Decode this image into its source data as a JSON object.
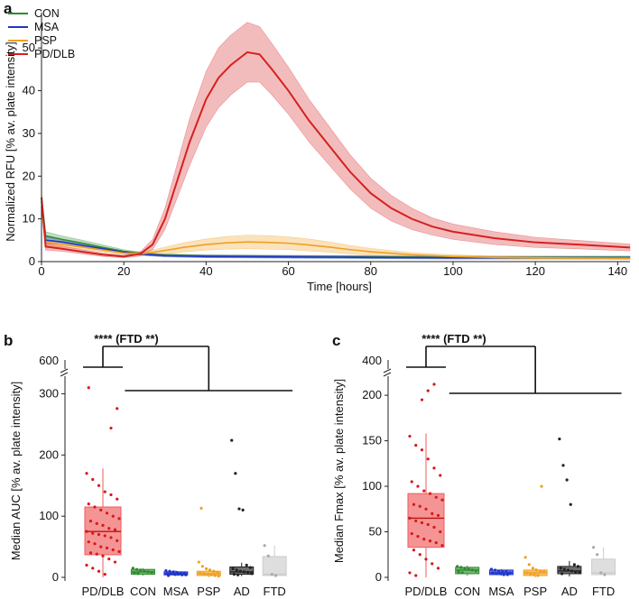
{
  "panel_a": {
    "letter": "a",
    "chart_data": {
      "type": "line",
      "title": "",
      "xlabel": "Time [hours]",
      "ylabel": "Normalized RFU [% av. plate intensity]",
      "xlim": [
        0,
        143
      ],
      "ylim": [
        0,
        57
      ],
      "xticks": [
        "0",
        "20",
        "40",
        "60",
        "80",
        "100",
        "120",
        "140"
      ],
      "yticks": [
        "0",
        "10",
        "20",
        "30",
        "40",
        "50"
      ],
      "legend": "top-left",
      "series": [
        {
          "name": "CON",
          "color": "#2e8b2e",
          "x": [
            0,
            1,
            5,
            10,
            15,
            20,
            25,
            30,
            40,
            60,
            80,
            100,
            120,
            143
          ],
          "y": [
            15,
            6,
            5.2,
            4.3,
            3.3,
            2.4,
            1.8,
            1.5,
            1.3,
            1.2,
            1.1,
            1.0,
            1.0,
            1.0
          ],
          "band": [
            1.2,
            1.0,
            0.8,
            0.7,
            0.6,
            0.4,
            0.3,
            0.3,
            0.3,
            0.3,
            0.3,
            0.3,
            0.3,
            0.3
          ]
        },
        {
          "name": "MSA",
          "color": "#1f35c8",
          "x": [
            0,
            1,
            5,
            10,
            15,
            20,
            25,
            30,
            40,
            60,
            80,
            100,
            120,
            143
          ],
          "y": [
            14,
            5,
            4.6,
            3.8,
            3.0,
            2.2,
            1.7,
            1.4,
            1.2,
            1.1,
            1.0,
            0.9,
            0.9,
            0.9
          ],
          "band": [
            1.0,
            0.8,
            0.6,
            0.5,
            0.4,
            0.3,
            0.3,
            0.3,
            0.3,
            0.3,
            0.3,
            0.3,
            0.3,
            0.3
          ]
        },
        {
          "name": "PSP",
          "color": "#f0a020",
          "x": [
            0,
            1,
            5,
            10,
            15,
            20,
            25,
            30,
            35,
            40,
            45,
            50,
            55,
            60,
            65,
            70,
            75,
            80,
            90,
            100,
            110,
            120,
            143
          ],
          "y": [
            13,
            4.5,
            4.0,
            3.4,
            2.7,
            2.0,
            1.9,
            2.6,
            3.4,
            4.0,
            4.4,
            4.6,
            4.5,
            4.3,
            3.9,
            3.4,
            2.8,
            2.3,
            1.6,
            1.2,
            1.0,
            0.9,
            0.8
          ],
          "band": [
            1.0,
            0.8,
            0.6,
            0.5,
            0.4,
            0.3,
            0.4,
            0.8,
            1.1,
            1.3,
            1.5,
            1.6,
            1.6,
            1.5,
            1.4,
            1.2,
            1.0,
            0.8,
            0.5,
            0.4,
            0.3,
            0.3,
            0.3
          ]
        },
        {
          "name": "PD/DLB",
          "color": "#d62020",
          "x": [
            0,
            1,
            5,
            10,
            15,
            20,
            24,
            27,
            30,
            33,
            36,
            40,
            43,
            46,
            50,
            53,
            56,
            60,
            65,
            70,
            75,
            80,
            85,
            90,
            95,
            100,
            110,
            120,
            130,
            143
          ],
          "y": [
            15,
            3.5,
            3.0,
            2.3,
            1.6,
            1.2,
            1.8,
            4,
            10,
            19,
            28,
            38,
            43,
            46,
            49,
            48.5,
            45,
            40,
            33,
            27,
            21,
            16,
            12.5,
            10,
            8.2,
            7,
            5.5,
            4.5,
            4,
            3.3
          ],
          "band": [
            1.2,
            0.8,
            0.6,
            0.5,
            0.4,
            0.3,
            0.5,
            1.2,
            2.5,
            4,
            5.5,
            6.5,
            7,
            7,
            7,
            6.5,
            6,
            5.5,
            5,
            4.5,
            4,
            3.5,
            3,
            2.5,
            2,
            1.8,
            1.5,
            1.2,
            1,
            0.8
          ]
        }
      ]
    }
  },
  "panel_b": {
    "letter": "b",
    "significance": "**** (FTD **)",
    "chart_data": {
      "type": "box",
      "xlabel": "",
      "ylabel": "Median AUC [% av. plate intensity]",
      "ylim": [
        0,
        320
      ],
      "broken_axis_label": "600",
      "yticks": [
        "0",
        "100",
        "200",
        "300"
      ],
      "categories": [
        "PD/DLB",
        "CON",
        "MSA",
        "PSP",
        "AD",
        "FTD"
      ],
      "colors": [
        "#f05a5a",
        "#2e8b2e",
        "#1f35c8",
        "#f0a020",
        "#222222",
        "#cccccc"
      ],
      "boxes": [
        {
          "q1": 37,
          "median": 75,
          "q3": 115,
          "whislo": 0,
          "whishi": 178
        },
        {
          "q1": 5,
          "median": 9,
          "q3": 13,
          "whislo": 3,
          "whishi": 15
        },
        {
          "q1": 4,
          "median": 6,
          "q3": 9,
          "whislo": 2,
          "whishi": 11
        },
        {
          "q1": 3,
          "median": 6,
          "q3": 10,
          "whislo": 0,
          "whishi": 14
        },
        {
          "q1": 5,
          "median": 9,
          "q3": 17,
          "whislo": 2,
          "whishi": 24
        },
        {
          "q1": 3,
          "median": 5,
          "q3": 34,
          "whislo": 3,
          "whishi": 52
        }
      ],
      "points": [
        [
          170,
          160,
          150,
          140,
          135,
          128,
          120,
          115,
          110,
          105,
          100,
          96,
          92,
          88,
          85,
          80,
          78,
          75,
          72,
          70,
          68,
          65,
          60,
          58,
          55,
          50,
          48,
          45,
          42,
          40,
          38,
          35,
          30,
          25,
          20,
          15,
          10,
          5,
          244,
          276,
          310
        ],
        [
          15,
          13,
          12,
          10,
          9,
          8,
          7,
          6
        ],
        [
          11,
          10,
          9,
          8,
          7,
          7,
          6,
          6,
          5,
          5,
          4,
          4,
          3
        ],
        [
          25,
          18,
          14,
          12,
          10,
          8,
          7,
          6,
          5,
          4,
          3,
          2,
          113
        ],
        [
          224,
          170,
          112,
          110,
          20,
          16,
          14,
          12,
          10,
          9,
          8,
          6,
          5,
          4
        ],
        [
          52,
          35,
          5,
          3
        ]
      ]
    }
  },
  "panel_c": {
    "letter": "c",
    "significance": "**** (FTD **)",
    "chart_data": {
      "type": "box",
      "xlabel": "",
      "ylabel": "Median Fmax [% av. plate intensity]",
      "ylim": [
        0,
        215
      ],
      "broken_axis_label": "400",
      "yticks": [
        "0",
        "50",
        "100",
        "150",
        "200"
      ],
      "categories": [
        "PD/DLB",
        "CON",
        "MSA",
        "PSP",
        "AD",
        "FTD"
      ],
      "colors": [
        "#f05a5a",
        "#2e8b2e",
        "#1f35c8",
        "#f0a020",
        "#222222",
        "#cccccc"
      ],
      "boxes": [
        {
          "q1": 33,
          "median": 65,
          "q3": 92,
          "whislo": 0,
          "whishi": 158
        },
        {
          "q1": 4,
          "median": 8,
          "q3": 11,
          "whislo": 2,
          "whishi": 13
        },
        {
          "q1": 3,
          "median": 5,
          "q3": 8,
          "whislo": 2,
          "whishi": 9
        },
        {
          "q1": 2,
          "median": 5,
          "q3": 8,
          "whislo": 0,
          "whishi": 10
        },
        {
          "q1": 4,
          "median": 7,
          "q3": 12,
          "whislo": 1,
          "whishi": 18
        },
        {
          "q1": 3,
          "median": 5,
          "q3": 20,
          "whislo": 3,
          "whishi": 33
        }
      ],
      "points": [
        [
          155,
          145,
          140,
          130,
          120,
          112,
          105,
          100,
          95,
          92,
          88,
          85,
          80,
          78,
          75,
          70,
          68,
          65,
          62,
          60,
          58,
          55,
          50,
          48,
          45,
          42,
          40,
          38,
          35,
          30,
          25,
          20,
          15,
          10,
          5,
          2,
          195,
          205,
          212
        ],
        [
          12,
          11,
          10,
          9,
          8,
          7,
          6,
          5
        ],
        [
          9,
          8,
          7,
          6,
          6,
          5,
          5,
          4,
          4,
          3,
          3
        ],
        [
          22,
          14,
          10,
          8,
          7,
          6,
          5,
          4,
          3,
          2,
          100
        ],
        [
          152,
          123,
          107,
          80,
          14,
          12,
          10,
          9,
          8,
          7,
          6,
          5,
          4
        ],
        [
          33,
          25,
          5,
          3
        ]
      ]
    }
  }
}
